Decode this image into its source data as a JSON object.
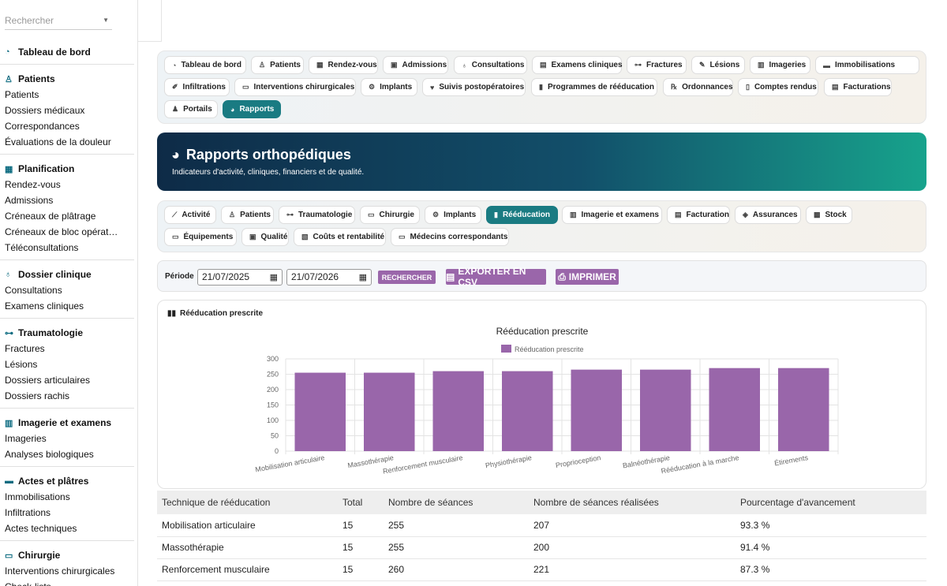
{
  "search": {
    "placeholder": "Rechercher"
  },
  "sidebar": {
    "groups": [
      {
        "title": "Tableau de bord",
        "icon": "gauge-icon",
        "items": []
      },
      {
        "title": "Patients",
        "icon": "user-injured-icon",
        "items": [
          "Patients",
          "Dossiers médicaux",
          "Correspondances",
          "Évaluations de la douleur"
        ]
      },
      {
        "title": "Planification",
        "icon": "calendar-icon",
        "items": [
          "Rendez-vous",
          "Admissions",
          "Créneaux de plâtrage",
          "Créneaux de bloc opérat…",
          "Téléconsultations"
        ]
      },
      {
        "title": "Dossier clinique",
        "icon": "stethoscope-icon",
        "items": [
          "Consultations",
          "Examens cliniques"
        ]
      },
      {
        "title": "Traumatologie",
        "icon": "bone-icon",
        "items": [
          "Fractures",
          "Lésions",
          "Dossiers articulaires",
          "Dossiers rachis"
        ]
      },
      {
        "title": "Imagerie et examens",
        "icon": "xray-icon",
        "items": [
          "Imageries",
          "Analyses biologiques"
        ]
      },
      {
        "title": "Actes et plâtres",
        "icon": "ruler-icon",
        "items": [
          "Immobilisations",
          "Infiltrations",
          "Actes techniques"
        ]
      },
      {
        "title": "Chirurgie",
        "icon": "bed-icon",
        "items": [
          "Interventions chirurgicales",
          "Check-lists"
        ]
      }
    ]
  },
  "main_nav": [
    {
      "label": "Tableau de bord",
      "icon": "gauge-icon"
    },
    {
      "label": "Patients",
      "icon": "user-injured-icon"
    },
    {
      "label": "Rendez-vous",
      "icon": "calendar-icon"
    },
    {
      "label": "Admissions",
      "icon": "clipboard-icon"
    },
    {
      "label": "Consultations",
      "icon": "stethoscope-icon"
    },
    {
      "label": "Examens cliniques",
      "icon": "file-medical-icon"
    },
    {
      "label": "Fractures",
      "icon": "bone-icon"
    },
    {
      "label": "Lésions",
      "icon": "bandage-icon"
    },
    {
      "label": "Imageries",
      "icon": "xray-icon"
    },
    {
      "label": "Immobilisations",
      "icon": "ruler-icon"
    },
    {
      "label": "Infiltrations",
      "icon": "syringe-icon"
    },
    {
      "label": "Interventions chirurgicales",
      "icon": "bed-icon"
    },
    {
      "label": "Implants",
      "icon": "gears-icon"
    },
    {
      "label": "Suivis postopératoires",
      "icon": "heart-icon"
    },
    {
      "label": "Programmes de rééducation",
      "icon": "dumbbell-icon"
    },
    {
      "label": "Ordonnances",
      "icon": "prescription-icon"
    },
    {
      "label": "Comptes rendus",
      "icon": "file-icon"
    },
    {
      "label": "Facturations",
      "icon": "invoice-icon"
    },
    {
      "label": "Portails",
      "icon": "users-icon"
    },
    {
      "label": "Rapports",
      "icon": "pie-chart-icon"
    }
  ],
  "hero": {
    "title": "Rapports orthopédiques",
    "subtitle": "Indicateurs d'activité, cliniques, financiers et de qualité."
  },
  "report_tabs": [
    {
      "label": "Activité",
      "icon": "line-chart-icon"
    },
    {
      "label": "Patients",
      "icon": "user-injured-icon"
    },
    {
      "label": "Traumatologie",
      "icon": "bone-icon"
    },
    {
      "label": "Chirurgie",
      "icon": "bed-icon"
    },
    {
      "label": "Implants",
      "icon": "gears-icon"
    },
    {
      "label": "Rééducation",
      "icon": "dumbbell-icon"
    },
    {
      "label": "Imagerie et examens",
      "icon": "xray-icon"
    },
    {
      "label": "Facturation",
      "icon": "invoice-icon"
    },
    {
      "label": "Assurances",
      "icon": "shield-icon"
    },
    {
      "label": "Stock",
      "icon": "boxes-icon"
    },
    {
      "label": "Équipements",
      "icon": "monitor-icon"
    },
    {
      "label": "Qualité",
      "icon": "clipboard-check-icon"
    },
    {
      "label": "Coûts et rentabilité",
      "icon": "money-icon"
    },
    {
      "label": "Médecins correspondants",
      "icon": "id-card-icon"
    }
  ],
  "filter": {
    "label": "Période",
    "date_from": "21/07/2025",
    "date_to": "21/07/2026",
    "search_button": "RECHERCHER",
    "export_button": "EXPORTER EN CSV",
    "print_button": "IMPRIMER"
  },
  "card": {
    "title": "Rééducation prescrite"
  },
  "chart_data": {
    "type": "bar",
    "title": "Rééducation prescrite",
    "categories": [
      "Mobilisation articulaire",
      "Massothérapie",
      "Renforcement musculaire",
      "Physiothérapie",
      "Proprioception",
      "Balnéothérapie",
      "Rééducation à la marche",
      "Étirements"
    ],
    "series": [
      {
        "name": "Rééducation prescrite",
        "values": [
          255,
          255,
          260,
          260,
          265,
          265,
          270,
          270
        ]
      }
    ],
    "ylim": [
      0,
      300
    ],
    "yticks": [
      0,
      50,
      100,
      150,
      200,
      250,
      300
    ],
    "legend": "top",
    "grid": true,
    "color": "#9966aa"
  },
  "table": {
    "headers": [
      "Technique de rééducation",
      "Total",
      "Nombre de séances",
      "Nombre de séances réalisées",
      "Pourcentage d'avancement"
    ],
    "rows": [
      [
        "Mobilisation articulaire",
        "15",
        "255",
        "207",
        "93.3 %"
      ],
      [
        "Massothérapie",
        "15",
        "255",
        "200",
        "91.4 %"
      ],
      [
        "Renforcement musculaire",
        "15",
        "260",
        "221",
        "87.3 %"
      ]
    ]
  }
}
